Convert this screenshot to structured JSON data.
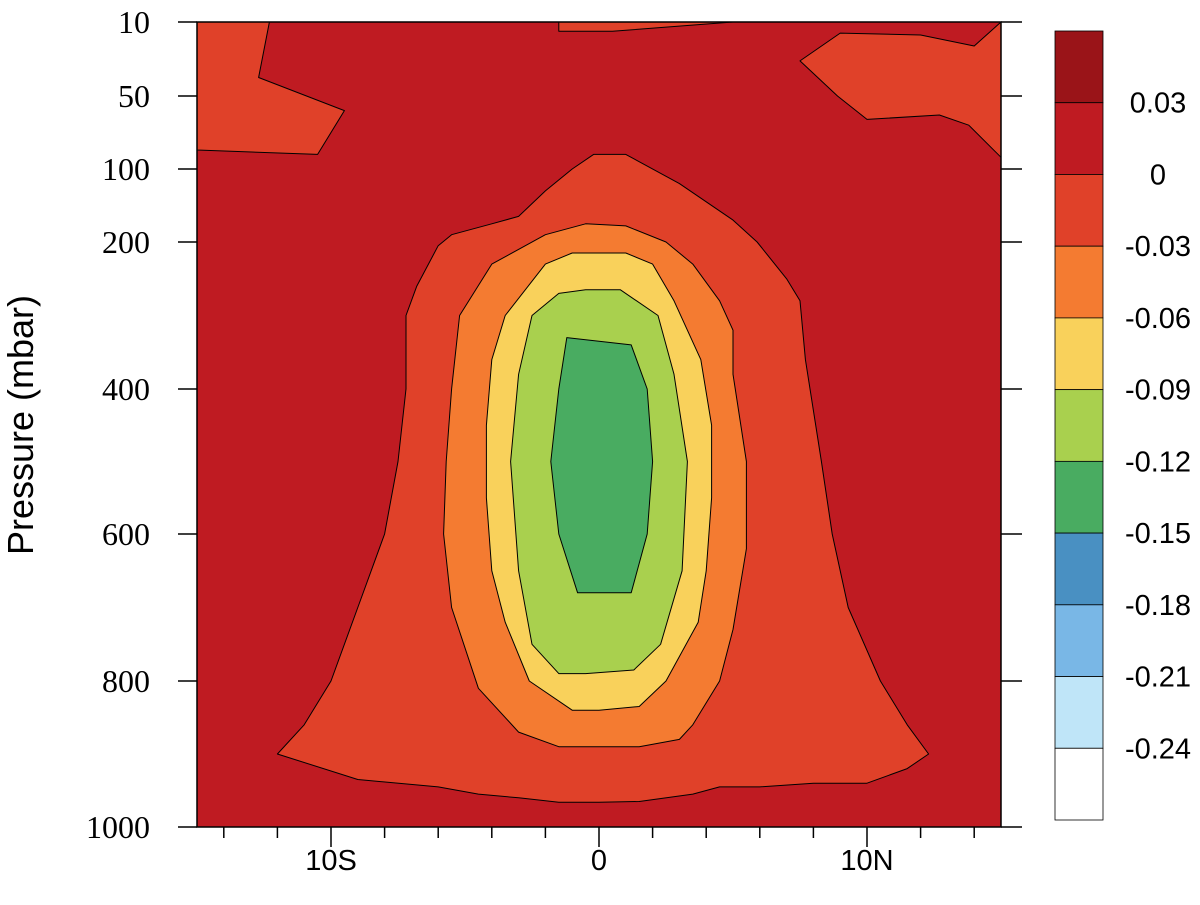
{
  "chart_data": {
    "type": "contour",
    "title": "",
    "ylabel": "Pressure (mbar)",
    "xlabel": "",
    "xlim": [
      -15,
      15
    ],
    "ylim": [
      10,
      1000
    ],
    "y_axis": {
      "scale": "piecewise-linear",
      "tick_values": [
        10,
        50,
        100,
        200,
        400,
        600,
        800,
        1000
      ],
      "tick_labels": [
        "10",
        "50",
        "100",
        "200",
        "400",
        "600",
        "800",
        "1000"
      ],
      "inverted": true
    },
    "x_axis": {
      "tick_values": [
        -10,
        0,
        10
      ],
      "tick_labels": [
        "10S",
        "0",
        "10N"
      ],
      "minor_tick_step": 2
    },
    "colorbar": {
      "labels": [
        "0.03",
        "0",
        "-0.03",
        "-0.06",
        "-0.09",
        "-0.12",
        "-0.15",
        "-0.18",
        "-0.21",
        "-0.24"
      ],
      "colors": [
        "#9a1418",
        "#bf1b22",
        "#e04129",
        "#f47b31",
        "#f9d15b",
        "#a9d04e",
        "#49ac61",
        "#4990c2",
        "#79b7e6",
        "#bfe5f8",
        "#ffffff"
      ]
    },
    "fill_levels": [
      {
        "level": "0 to 0.03",
        "color": "#bf1b22"
      },
      {
        "level": "-0.03 to 0",
        "color": "#e04129"
      },
      {
        "level": "-0.06 to -0.03",
        "color": "#f47b31"
      },
      {
        "level": "-0.09 to -0.06",
        "color": "#f9d15b"
      },
      {
        "level": "-0.12 to -0.09",
        "color": "#a9d04e"
      },
      {
        "level": "-0.15 to -0.12",
        "color": "#49ac61"
      }
    ],
    "contours": [
      {
        "name": "top-left-negative",
        "fill": "#e04129",
        "points": [
          [
            -15,
            10
          ],
          [
            -12.3,
            10
          ],
          [
            -12.7,
            40
          ],
          [
            -9.5,
            60
          ],
          [
            -10.5,
            90
          ],
          [
            -15,
            87
          ],
          [
            -15,
            62
          ]
        ]
      },
      {
        "name": "top-right-negative",
        "fill": "#e04129",
        "points": [
          [
            15,
            10
          ],
          [
            15,
            92
          ],
          [
            13.8,
            70
          ],
          [
            12.7,
            63
          ],
          [
            10,
            66
          ],
          [
            8.9,
            50
          ],
          [
            7.5,
            31
          ],
          [
            9,
            16
          ],
          [
            12,
            17
          ],
          [
            14,
            23
          ]
        ]
      },
      {
        "name": "top-center-sliver",
        "fill": "#e04129",
        "points": [
          [
            -1.5,
            10
          ],
          [
            5,
            10
          ],
          [
            0.5,
            15
          ],
          [
            -1.5,
            15
          ]
        ]
      },
      {
        "name": "level-minus-003",
        "fill": "#e04129",
        "points": [
          [
            -0.2,
            90
          ],
          [
            1,
            90
          ],
          [
            3,
            120
          ],
          [
            5,
            170
          ],
          [
            5.9,
            200
          ],
          [
            7,
            250
          ],
          [
            7.5,
            280
          ],
          [
            7.7,
            360
          ],
          [
            8.3,
            500
          ],
          [
            8.7,
            600
          ],
          [
            9.3,
            700
          ],
          [
            10.5,
            800
          ],
          [
            11.5,
            860
          ],
          [
            12.3,
            900
          ],
          [
            11.5,
            920
          ],
          [
            10,
            940
          ],
          [
            8,
            940
          ],
          [
            6,
            945
          ],
          [
            4.5,
            945
          ],
          [
            3.5,
            955
          ],
          [
            1.5,
            965
          ],
          [
            0,
            966
          ],
          [
            -1.5,
            966
          ],
          [
            -3,
            960
          ],
          [
            -4.5,
            955
          ],
          [
            -6,
            945
          ],
          [
            -9,
            935
          ],
          [
            -12,
            900
          ],
          [
            -11,
            860
          ],
          [
            -10,
            800
          ],
          [
            -9,
            700
          ],
          [
            -8,
            600
          ],
          [
            -7.5,
            500
          ],
          [
            -7.2,
            400
          ],
          [
            -7.2,
            300
          ],
          [
            -6.8,
            260
          ],
          [
            -6,
            205
          ],
          [
            -5.5,
            190
          ],
          [
            -4,
            175
          ],
          [
            -3,
            165
          ],
          [
            -2,
            130
          ],
          [
            -1,
            100
          ]
        ]
      },
      {
        "name": "level-minus-006",
        "fill": "#f47b31",
        "points": [
          [
            -0.5,
            175
          ],
          [
            1,
            178
          ],
          [
            2.5,
            200
          ],
          [
            3.5,
            230
          ],
          [
            4.5,
            280
          ],
          [
            5,
            320
          ],
          [
            5,
            380
          ],
          [
            5.5,
            500
          ],
          [
            5.5,
            620
          ],
          [
            5,
            730
          ],
          [
            4.5,
            800
          ],
          [
            3.5,
            860
          ],
          [
            3,
            880
          ],
          [
            1.5,
            890
          ],
          [
            0,
            890
          ],
          [
            -1.5,
            890
          ],
          [
            -3,
            870
          ],
          [
            -4.5,
            810
          ],
          [
            -5.5,
            700
          ],
          [
            -5.8,
            600
          ],
          [
            -5.7,
            500
          ],
          [
            -5.5,
            400
          ],
          [
            -5.2,
            300
          ],
          [
            -4,
            230
          ],
          [
            -2,
            190
          ]
        ]
      },
      {
        "name": "level-minus-009",
        "fill": "#f9d15b",
        "points": [
          [
            0,
            215
          ],
          [
            1,
            215
          ],
          [
            2,
            230
          ],
          [
            2.8,
            280
          ],
          [
            3.8,
            360
          ],
          [
            4.2,
            450
          ],
          [
            4.2,
            550
          ],
          [
            4,
            650
          ],
          [
            3.7,
            720
          ],
          [
            2.5,
            800
          ],
          [
            1.5,
            835
          ],
          [
            0,
            840
          ],
          [
            -1,
            840
          ],
          [
            -2.6,
            800
          ],
          [
            -3.5,
            720
          ],
          [
            -4,
            650
          ],
          [
            -4.2,
            550
          ],
          [
            -4.2,
            450
          ],
          [
            -4,
            360
          ],
          [
            -3.5,
            300
          ],
          [
            -2,
            230
          ],
          [
            -1,
            215
          ]
        ]
      },
      {
        "name": "level-minus-012",
        "fill": "#a9d04e",
        "points": [
          [
            -0.5,
            265
          ],
          [
            0.8,
            265
          ],
          [
            2.2,
            300
          ],
          [
            2.8,
            380
          ],
          [
            3.3,
            500
          ],
          [
            3.1,
            650
          ],
          [
            2.3,
            750
          ],
          [
            1.3,
            785
          ],
          [
            -0.5,
            790
          ],
          [
            -1.5,
            790
          ],
          [
            -2.5,
            750
          ],
          [
            -3,
            650
          ],
          [
            -3.3,
            500
          ],
          [
            -3,
            380
          ],
          [
            -2.5,
            300
          ],
          [
            -1.5,
            270
          ]
        ]
      },
      {
        "name": "level-minus-015",
        "fill": "#49ac61",
        "points": [
          [
            -1.2,
            330
          ],
          [
            1.2,
            340
          ],
          [
            1.8,
            400
          ],
          [
            2,
            500
          ],
          [
            1.8,
            600
          ],
          [
            1.2,
            680
          ],
          [
            -0.8,
            680
          ],
          [
            -1.5,
            600
          ],
          [
            -1.8,
            500
          ],
          [
            -1.5,
            400
          ]
        ]
      }
    ]
  }
}
